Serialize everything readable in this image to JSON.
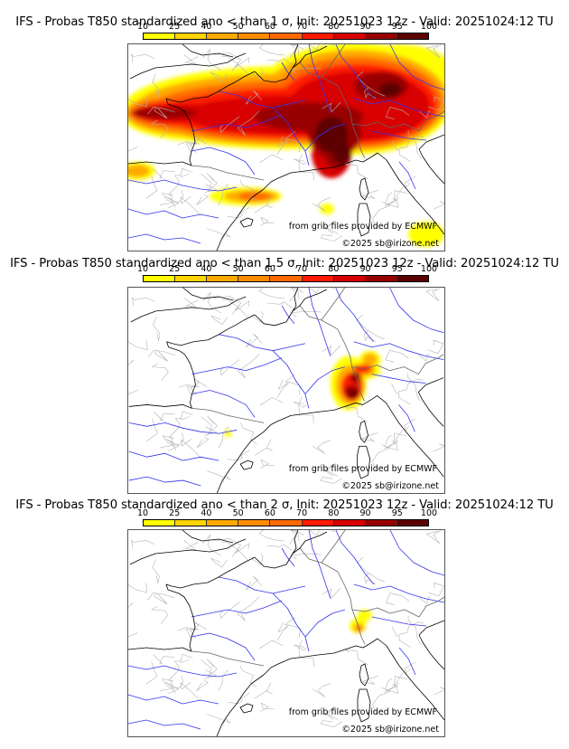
{
  "colorbar": {
    "ticks": [
      "10",
      "25",
      "40",
      "50",
      "60",
      "70",
      "80",
      "90",
      "95",
      "100"
    ],
    "colors": [
      "#ffff00",
      "#ffd400",
      "#ffaa00",
      "#ff8c00",
      "#ff6a00",
      "#ff1a00",
      "#d80000",
      "#980000",
      "#5c0000"
    ]
  },
  "panels": [
    {
      "title": "IFS - Probas T850  standardized ano < than 1 σ, Init: 20251023 12z - Valid: 20251024:12 TU",
      "threshold": "1 σ",
      "credit_source": "from grib files provided by ECMWF",
      "credit_copyright": "©2025 sb@irizone.net"
    },
    {
      "title": "IFS - Probas T850  standardized ano < than 1.5 σ, Init: 20251023 12z - Valid: 20251024:12 TU",
      "threshold": "1.5 σ",
      "credit_source": "from grib files provided by ECMWF",
      "credit_copyright": "©2025 sb@irizone.net"
    },
    {
      "title": "IFS - Probas T850  standardized ano < than 2 σ, Init: 20251023 12z - Valid: 20251024:12 TU",
      "threshold": "2 σ",
      "credit_source": "from grib files provided by ECMWF",
      "credit_copyright": "©2025 sb@irizone.net"
    }
  ],
  "colors": {
    "coastline": "#000000",
    "borders": "#999999",
    "rivers": "#3333ee"
  }
}
